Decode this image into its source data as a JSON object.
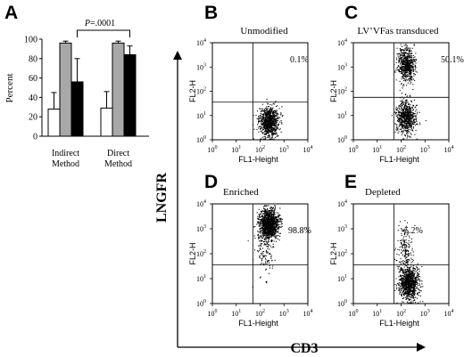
{
  "panel_letters": {
    "a": "A",
    "b": "B",
    "c": "C",
    "d": "D",
    "e": "E"
  },
  "chart_data": [
    {
      "panel": "A",
      "type": "bar",
      "ylabel": "Percent",
      "ylim": [
        0,
        100
      ],
      "yticks": [
        0,
        20,
        40,
        60,
        80,
        100
      ],
      "groups": [
        {
          "label_lines": [
            "Indirect",
            "Method"
          ]
        },
        {
          "label_lines": [
            "Direct",
            "Method"
          ]
        }
      ],
      "series": [
        {
          "color": "#ffffff",
          "values": [
            28,
            29
          ],
          "errors": [
            17,
            17
          ]
        },
        {
          "color": "#a8a8a8",
          "values": [
            96,
            96
          ],
          "errors": [
            2,
            2
          ]
        },
        {
          "color": "#000000",
          "values": [
            56,
            84
          ],
          "errors": [
            24,
            9
          ]
        }
      ],
      "annotation": {
        "prefix": "P",
        "text": "=.0001"
      }
    },
    {
      "panel": "B",
      "type": "scatter",
      "title": "Unmodified",
      "percent": "0.1%",
      "xaxis_label": "FL1-Height",
      "yaxis_label": "FL2-H",
      "log_range": [
        0,
        4
      ],
      "gates": {
        "x": 1.7,
        "y": 1.55
      },
      "clusters": [
        {
          "x": 2.35,
          "y": 0.75,
          "sx": 0.2,
          "sy": 0.3,
          "n": 900
        }
      ]
    },
    {
      "panel": "C",
      "type": "scatter",
      "title": "LV’VFas transduced",
      "percent": "50.1%",
      "xaxis_label": "FL1-Height",
      "yaxis_label": "FL2-H",
      "log_range": [
        0,
        4
      ],
      "gates": {
        "x": 1.7,
        "y": 1.75
      },
      "clusters": [
        {
          "x": 2.2,
          "y": 3.1,
          "sx": 0.18,
          "sy": 0.35,
          "n": 650
        },
        {
          "x": 2.2,
          "y": 0.95,
          "sx": 0.2,
          "sy": 0.35,
          "n": 700
        }
      ]
    },
    {
      "panel": "D",
      "type": "scatter",
      "title": "Enriched",
      "percent": "98.8%",
      "xaxis_label": "FL1-Height",
      "yaxis_label": "FL2-H",
      "log_range": [
        0,
        4
      ],
      "gates": {
        "x": 1.7,
        "y": 1.55
      },
      "clusters": [
        {
          "x": 2.35,
          "y": 3.2,
          "sx": 0.2,
          "sy": 0.3,
          "n": 1300
        },
        {
          "x": 2.2,
          "y": 2.2,
          "sx": 0.2,
          "sy": 0.5,
          "n": 140
        }
      ]
    },
    {
      "panel": "E",
      "type": "scatter",
      "title": "Depleted",
      "percent": "5.2%",
      "xaxis_label": "FL1-Height",
      "yaxis_label": "FL2-H",
      "log_range": [
        0,
        4
      ],
      "gates": {
        "x": 1.7,
        "y": 1.55
      },
      "clusters": [
        {
          "x": 2.3,
          "y": 0.85,
          "sx": 0.2,
          "sy": 0.35,
          "n": 1000
        },
        {
          "x": 2.15,
          "y": 2.3,
          "sx": 0.15,
          "sy": 0.45,
          "n": 160
        }
      ]
    }
  ],
  "axis_labels": {
    "y": "LNGFR",
    "x": "CD3"
  }
}
